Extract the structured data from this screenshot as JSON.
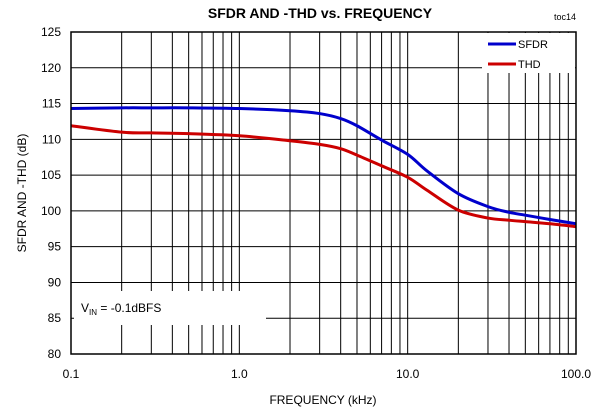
{
  "chart_data": {
    "type": "line",
    "title": "SFDR AND -THD vs. FREQUENCY",
    "tag": "toc14",
    "xlabel": "FREQUENCY (kHz)",
    "ylabel": "SFDR AND -THD (dB)",
    "x_scale": "log",
    "xlim": [
      0.1,
      100.0
    ],
    "ylim": [
      80,
      125
    ],
    "x_ticks": [
      0.1,
      1.0,
      10.0,
      100.0
    ],
    "x_tick_labels": [
      "0.1",
      "1.0",
      "10.0",
      "100.0"
    ],
    "y_ticks": [
      80,
      85,
      90,
      95,
      100,
      105,
      110,
      115,
      120,
      125
    ],
    "y_tick_labels": [
      "80",
      "85",
      "90",
      "95",
      "100",
      "105",
      "110",
      "115",
      "120",
      "125"
    ],
    "grid": true,
    "legend_position": "top-right",
    "annotation": {
      "prefix": "V",
      "subscript": "IN",
      "text": " = -0.1dBFS"
    },
    "series": [
      {
        "name": "SFDR",
        "color": "#0000cc",
        "x": [
          0.1,
          0.2,
          0.3,
          0.5,
          1.0,
          2.0,
          3.0,
          4.0,
          5.0,
          7.0,
          10.0,
          13.0,
          20.0,
          30.0,
          40.0,
          50.0,
          70.0,
          100.0
        ],
        "y": [
          114.3,
          114.4,
          114.4,
          114.4,
          114.3,
          114.0,
          113.6,
          112.9,
          111.9,
          109.9,
          107.9,
          105.6,
          102.4,
          100.6,
          99.8,
          99.4,
          98.8,
          98.2
        ]
      },
      {
        "name": "THD",
        "color": "#cc0000",
        "x": [
          0.1,
          0.2,
          0.3,
          0.5,
          1.0,
          2.0,
          3.0,
          4.0,
          5.0,
          7.0,
          10.0,
          13.0,
          20.0,
          30.0,
          40.0,
          50.0,
          70.0,
          100.0
        ],
        "y": [
          111.9,
          111.0,
          110.9,
          110.8,
          110.5,
          109.8,
          109.3,
          108.7,
          107.8,
          106.3,
          104.7,
          102.9,
          100.1,
          99.0,
          98.7,
          98.5,
          98.2,
          97.8
        ]
      }
    ]
  }
}
